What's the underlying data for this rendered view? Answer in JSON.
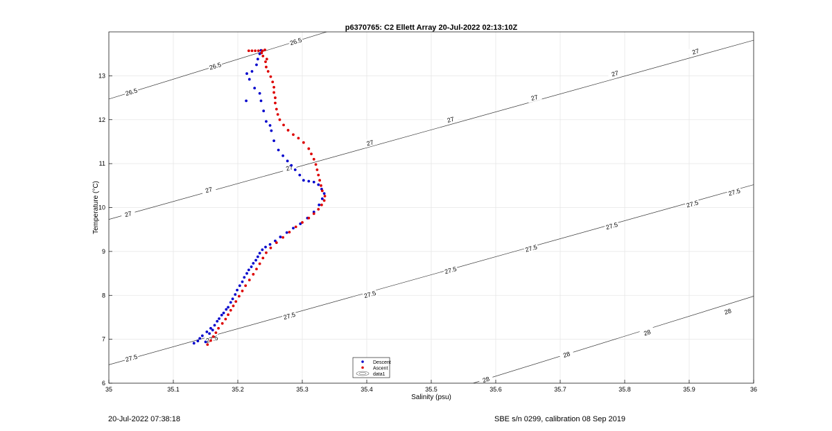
{
  "chart_data": {
    "type": "scatter",
    "title": "p6370765: C2 Ellett Array 20-Jul-2022 02:13:10Z",
    "xlabel": "Salinity (psu)",
    "ylabel": "Temperature (°C)",
    "xlim": [
      35,
      36
    ],
    "ylim": [
      6,
      14
    ],
    "grid": true,
    "x_ticks": [
      35,
      35.1,
      35.2,
      35.3,
      35.4,
      35.5,
      35.6,
      35.7,
      35.8,
      35.9,
      36
    ],
    "x_tick_labels": [
      "35",
      "35.1",
      "35.2",
      "35.3",
      "35.4",
      "35.5",
      "35.6",
      "35.7",
      "35.8",
      "35.9",
      "36"
    ],
    "y_ticks": [
      6,
      7,
      8,
      9,
      10,
      11,
      12,
      13
    ],
    "y_tick_labels": [
      "6",
      "7",
      "8",
      "9",
      "10",
      "11",
      "12",
      "13"
    ],
    "legend": {
      "placement": "bottom-center",
      "entries": [
        "Descent",
        "Ascent",
        "data1"
      ]
    },
    "series": [
      {
        "name": "Descent",
        "color": "#0000cc",
        "marker": "dot",
        "points": [
          [
            35.132,
            6.91
          ],
          [
            35.138,
            6.96
          ],
          [
            35.141,
            7.02
          ],
          [
            35.145,
            7.08
          ],
          [
            35.15,
            6.94
          ],
          [
            35.152,
            7.17
          ],
          [
            35.156,
            7.13
          ],
          [
            35.158,
            7.25
          ],
          [
            35.161,
            7.21
          ],
          [
            35.164,
            7.32
          ],
          [
            35.168,
            7.41
          ],
          [
            35.171,
            7.47
          ],
          [
            35.175,
            7.55
          ],
          [
            35.178,
            7.6
          ],
          [
            35.182,
            7.68
          ],
          [
            35.185,
            7.73
          ],
          [
            35.189,
            7.84
          ],
          [
            35.192,
            7.92
          ],
          [
            35.196,
            8.02
          ],
          [
            35.199,
            8.12
          ],
          [
            35.203,
            8.22
          ],
          [
            35.207,
            8.31
          ],
          [
            35.21,
            8.41
          ],
          [
            35.214,
            8.5
          ],
          [
            35.217,
            8.58
          ],
          [
            35.221,
            8.65
          ],
          [
            35.224,
            8.73
          ],
          [
            35.228,
            8.8
          ],
          [
            35.231,
            8.88
          ],
          [
            35.234,
            8.96
          ],
          [
            35.238,
            9.04
          ],
          [
            35.243,
            9.1
          ],
          [
            35.25,
            9.16
          ],
          [
            35.258,
            9.24
          ],
          [
            35.266,
            9.33
          ],
          [
            35.276,
            9.43
          ],
          [
            35.286,
            9.53
          ],
          [
            35.297,
            9.63
          ],
          [
            35.308,
            9.76
          ],
          [
            35.318,
            9.9
          ],
          [
            35.326,
            10.06
          ],
          [
            35.331,
            10.2
          ],
          [
            35.334,
            10.32
          ],
          [
            35.33,
            10.42
          ],
          [
            35.325,
            10.52
          ],
          [
            35.318,
            10.58
          ],
          [
            35.31,
            10.6
          ],
          [
            35.302,
            10.62
          ],
          [
            35.296,
            10.74
          ],
          [
            35.289,
            10.86
          ],
          [
            35.283,
            10.96
          ],
          [
            35.277,
            11.06
          ],
          [
            35.27,
            11.18
          ],
          [
            35.263,
            11.31
          ],
          [
            35.256,
            11.52
          ],
          [
            35.252,
            11.75
          ],
          [
            35.25,
            11.87
          ],
          [
            35.244,
            11.96
          ],
          [
            35.24,
            12.2
          ],
          [
            35.236,
            12.43
          ],
          [
            35.234,
            12.6
          ],
          [
            35.226,
            12.72
          ],
          [
            35.218,
            12.92
          ],
          [
            35.222,
            13.1
          ],
          [
            35.214,
            13.05
          ],
          [
            35.213,
            12.43
          ],
          [
            35.229,
            13.25
          ],
          [
            35.231,
            13.38
          ],
          [
            35.234,
            13.5
          ],
          [
            35.236,
            13.58
          ]
        ]
      },
      {
        "name": "Ascent",
        "color": "#dd0000",
        "marker": "dot",
        "points": [
          [
            35.153,
            6.88
          ],
          [
            35.158,
            6.97
          ],
          [
            35.162,
            7.06
          ],
          [
            35.166,
            7.15
          ],
          [
            35.17,
            7.25
          ],
          [
            35.176,
            7.36
          ],
          [
            35.181,
            7.46
          ],
          [
            35.185,
            7.56
          ],
          [
            35.189,
            7.66
          ],
          [
            35.193,
            7.76
          ],
          [
            35.197,
            7.86
          ],
          [
            35.202,
            7.98
          ],
          [
            35.207,
            8.1
          ],
          [
            35.212,
            8.22
          ],
          [
            35.218,
            8.35
          ],
          [
            35.224,
            8.48
          ],
          [
            35.229,
            8.6
          ],
          [
            35.234,
            8.72
          ],
          [
            35.239,
            8.85
          ],
          [
            35.244,
            8.97
          ],
          [
            35.251,
            9.08
          ],
          [
            35.26,
            9.2
          ],
          [
            35.27,
            9.32
          ],
          [
            35.28,
            9.44
          ],
          [
            35.29,
            9.56
          ],
          [
            35.3,
            9.66
          ],
          [
            35.31,
            9.76
          ],
          [
            35.318,
            9.86
          ],
          [
            35.325,
            9.96
          ],
          [
            35.33,
            10.06
          ],
          [
            35.334,
            10.16
          ],
          [
            35.335,
            10.26
          ],
          [
            35.331,
            10.38
          ],
          [
            35.329,
            10.5
          ],
          [
            35.327,
            10.62
          ],
          [
            35.325,
            10.74
          ],
          [
            35.323,
            10.86
          ],
          [
            35.321,
            10.98
          ],
          [
            35.318,
            11.1
          ],
          [
            35.314,
            11.22
          ],
          [
            35.31,
            11.34
          ],
          [
            35.302,
            11.48
          ],
          [
            35.294,
            11.58
          ],
          [
            35.286,
            11.66
          ],
          [
            35.278,
            11.76
          ],
          [
            35.271,
            11.88
          ],
          [
            35.265,
            12.0
          ],
          [
            35.262,
            12.12
          ],
          [
            35.26,
            12.24
          ],
          [
            35.258,
            12.38
          ],
          [
            35.258,
            12.5
          ],
          [
            35.256,
            12.62
          ],
          [
            35.256,
            12.74
          ],
          [
            35.254,
            12.86
          ],
          [
            35.251,
            12.98
          ],
          [
            35.247,
            13.1
          ],
          [
            35.244,
            13.2
          ],
          [
            35.243,
            13.32
          ],
          [
            35.245,
            13.38
          ],
          [
            35.239,
            13.45
          ],
          [
            35.237,
            13.52
          ],
          [
            35.217,
            13.57
          ],
          [
            35.222,
            13.57
          ],
          [
            35.227,
            13.57
          ],
          [
            35.232,
            13.57
          ],
          [
            35.238,
            13.57
          ],
          [
            35.242,
            13.59
          ]
        ]
      }
    ],
    "contours": [
      {
        "label": "26.5",
        "points": [
          [
            35,
            12.47
          ],
          [
            36,
            17.0
          ]
        ],
        "label_positions": [
          [
            35.035,
            12.63
          ],
          [
            35.165,
            13.22
          ],
          [
            35.29,
            13.78
          ]
        ]
      },
      {
        "label": "27",
        "points": [
          [
            35,
            9.73
          ],
          [
            36,
            13.81
          ]
        ],
        "label_positions": [
          [
            35.03,
            9.85
          ],
          [
            35.155,
            10.4
          ],
          [
            35.28,
            10.9
          ],
          [
            35.405,
            11.47
          ],
          [
            35.53,
            12.0
          ],
          [
            35.66,
            12.5
          ],
          [
            35.785,
            13.05
          ],
          [
            35.91,
            13.55
          ]
        ]
      },
      {
        "label": "27.5",
        "points": [
          [
            35,
            6.42
          ],
          [
            36,
            10.52
          ]
        ],
        "label_positions": [
          [
            35.035,
            6.57
          ],
          [
            35.16,
            7.0
          ],
          [
            35.28,
            7.53
          ],
          [
            35.405,
            8.02
          ],
          [
            35.53,
            8.57
          ],
          [
            35.655,
            9.07
          ],
          [
            35.78,
            9.58
          ],
          [
            35.905,
            10.08
          ],
          [
            35.97,
            10.35
          ]
        ]
      },
      {
        "label": "28",
        "points": [
          [
            35.565,
            6.0
          ],
          [
            36,
            7.98
          ]
        ],
        "label_positions": [
          [
            35.585,
            6.08
          ],
          [
            35.71,
            6.65
          ],
          [
            35.835,
            7.15
          ],
          [
            35.96,
            7.63
          ]
        ]
      }
    ]
  },
  "footer": {
    "left": "20-Jul-2022 07:38:18",
    "right": "SBE s/n 0299, calibration 08 Sep 2019"
  }
}
